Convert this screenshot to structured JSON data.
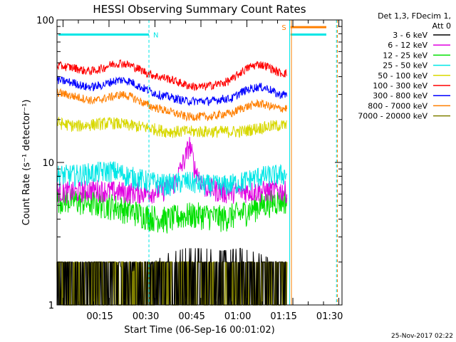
{
  "chart_data": {
    "type": "line",
    "title": "HESSI Observing Summary Count Rates",
    "xlabel": "Start Time (06-Sep-16 00:01:02)",
    "ylabel": "Count Rate (s⁻¹ detector⁻¹)",
    "yscale": "log",
    "ylim": [
      1,
      100
    ],
    "y_tick_labels": [
      "1",
      "10",
      "100"
    ],
    "xlim": [
      0,
      1.55
    ],
    "x_axis_unit": "hours after start time",
    "x_tick_labels": [
      "00:15",
      "00:30",
      "00:45",
      "01:00",
      "01:15",
      "01:30"
    ],
    "x_tick_values": [
      0.2328,
      0.4828,
      0.7328,
      0.9828,
      1.2328,
      1.4828
    ],
    "legend_header": [
      "Det 1,3, FDecim 1,",
      "Att 0"
    ],
    "legend_position": "top-right, outside plot",
    "x_range_observed": [
      0,
      1.25
    ],
    "series": [
      {
        "name": "3 - 6 keV",
        "color": "#000000",
        "x": [
          0.0,
          0.1,
          0.2,
          0.3,
          0.4,
          0.5,
          0.6,
          0.7,
          0.8,
          0.9,
          1.0,
          1.1,
          1.2,
          1.25
        ],
        "y": [
          2,
          2,
          2,
          2,
          1.7,
          1.9,
          2.3,
          2.5,
          2.5,
          2.4,
          2.5,
          2.3,
          2,
          2
        ]
      },
      {
        "name": "6 - 12 keV",
        "color": "#e000e0",
        "x": [
          0.0,
          0.1,
          0.2,
          0.3,
          0.4,
          0.5,
          0.6,
          0.65,
          0.7,
          0.72,
          0.75,
          0.8,
          0.9,
          1.0,
          1.1,
          1.2,
          1.25
        ],
        "y": [
          6.3,
          6.2,
          6.5,
          6.3,
          6.2,
          6.2,
          6.5,
          7.5,
          11,
          13.5,
          9,
          6.8,
          6.2,
          6.3,
          6.3,
          6.4,
          6.3
        ]
      },
      {
        "name": "12 - 25 keV",
        "color": "#00e000",
        "x": [
          0.0,
          0.1,
          0.2,
          0.3,
          0.4,
          0.5,
          0.6,
          0.7,
          0.8,
          0.9,
          1.0,
          1.1,
          1.2,
          1.25
        ],
        "y": [
          5.6,
          5.4,
          5.2,
          5.0,
          4.6,
          4.2,
          4.0,
          4.3,
          4.3,
          4.1,
          4.4,
          5.0,
          5.4,
          5.5
        ]
      },
      {
        "name": "25 - 50 keV",
        "color": "#00e6e6",
        "x": [
          0.0,
          0.1,
          0.2,
          0.3,
          0.4,
          0.5,
          0.6,
          0.7,
          0.8,
          0.9,
          1.0,
          1.1,
          1.2,
          1.25
        ],
        "y": [
          8.2,
          8.2,
          8.5,
          8.8,
          8.0,
          7.4,
          7.0,
          7.4,
          7.0,
          6.9,
          7.3,
          8.0,
          8.2,
          8.3
        ]
      },
      {
        "name": "50 - 100 keV",
        "color": "#d8d800",
        "x": [
          0.0,
          0.1,
          0.2,
          0.3,
          0.4,
          0.5,
          0.6,
          0.7,
          0.8,
          0.9,
          1.0,
          1.1,
          1.2,
          1.25
        ],
        "y": [
          19,
          18,
          18.5,
          19,
          18.2,
          17.5,
          16.5,
          16.5,
          16.5,
          16.5,
          16.5,
          17.5,
          18.2,
          18.2
        ]
      },
      {
        "name": "100 - 300 keV",
        "color": "#ff0000",
        "x": [
          0.0,
          0.05,
          0.1,
          0.15,
          0.2,
          0.25,
          0.3,
          0.35,
          0.4,
          0.45,
          0.5,
          0.55,
          0.6,
          0.65,
          0.7,
          0.75,
          0.8,
          0.85,
          0.9,
          0.95,
          1.0,
          1.05,
          1.1,
          1.15,
          1.2,
          1.25
        ],
        "y": [
          48,
          47,
          46,
          44,
          44,
          46,
          49,
          50,
          48,
          45,
          42,
          40,
          39,
          37,
          35,
          34,
          34,
          35,
          36,
          38,
          43,
          47,
          49,
          47,
          43,
          42
        ]
      },
      {
        "name": "300 - 800 keV",
        "color": "#0000ff",
        "x": [
          0.0,
          0.05,
          0.1,
          0.15,
          0.2,
          0.25,
          0.3,
          0.35,
          0.4,
          0.45,
          0.5,
          0.55,
          0.6,
          0.65,
          0.7,
          0.75,
          0.8,
          0.85,
          0.9,
          0.95,
          1.0,
          1.05,
          1.1,
          1.15,
          1.2,
          1.25
        ],
        "y": [
          38,
          37,
          36,
          34,
          34,
          35,
          37,
          38,
          37,
          34,
          32,
          30,
          29,
          28,
          27,
          27,
          27,
          27,
          28,
          28,
          31,
          33,
          34,
          33,
          30,
          30
        ]
      },
      {
        "name": "800 - 7000 keV",
        "color": "#ff7f00",
        "x": [
          0.0,
          0.05,
          0.1,
          0.15,
          0.2,
          0.25,
          0.3,
          0.35,
          0.4,
          0.45,
          0.5,
          0.55,
          0.6,
          0.65,
          0.7,
          0.75,
          0.8,
          0.85,
          0.9,
          0.95,
          1.0,
          1.05,
          1.1,
          1.15,
          1.2,
          1.25
        ],
        "y": [
          31,
          30,
          29,
          28,
          27,
          28,
          29,
          30,
          29,
          27,
          25,
          24,
          23,
          22,
          21,
          21,
          21,
          21,
          22,
          22,
          24,
          25,
          26,
          25,
          24,
          24
        ]
      },
      {
        "name": "7000 - 20000 keV",
        "color": "#808000",
        "x": [
          0.0,
          0.1,
          0.2,
          0.3,
          0.4,
          0.5,
          0.6,
          0.7,
          0.8,
          0.9,
          1.0,
          1.1,
          1.2,
          1.25
        ],
        "y": [
          1.3,
          1.5,
          1.5,
          1.4,
          1.3,
          1.2,
          1.1,
          1.2,
          1.2,
          1.3,
          1.5,
          1.5,
          1.4,
          1.4
        ]
      }
    ],
    "annotations": [
      {
        "label": "N",
        "color": "#00e6e6",
        "x": 0.5
      },
      {
        "label": "S",
        "color": "#ff7f00",
        "x": 1.27
      }
    ],
    "markers": {
      "night_bar": {
        "color": "#00e6e6",
        "y": 79,
        "x": [
          0,
          0.5
        ],
        "dashed_edge_x": 0.5
      },
      "saa_bars": [
        {
          "color": "#ff7f00",
          "y": 89,
          "x": [
            1.27,
            1.55
          ]
        },
        {
          "color": "#00e6e6",
          "y": 79,
          "x": [
            1.27,
            1.55
          ]
        }
      ],
      "vertical_lines": [
        {
          "x": 0.0,
          "color": "#00e6e6",
          "style": "solid"
        },
        {
          "x": 0.5,
          "color": "#00e6e6",
          "style": "dashed"
        },
        {
          "x": 1.265,
          "color": "#00e6e6",
          "style": "solid"
        },
        {
          "x": 1.275,
          "color": "#ff7f00",
          "style": "solid"
        },
        {
          "x": 1.52,
          "color": "#00e6e6",
          "style": "dashed"
        },
        {
          "x": 1.525,
          "color": "#ff7f00",
          "style": "dashed"
        }
      ]
    },
    "grid": false,
    "timestamp": "25-Nov-2017 02:22"
  }
}
